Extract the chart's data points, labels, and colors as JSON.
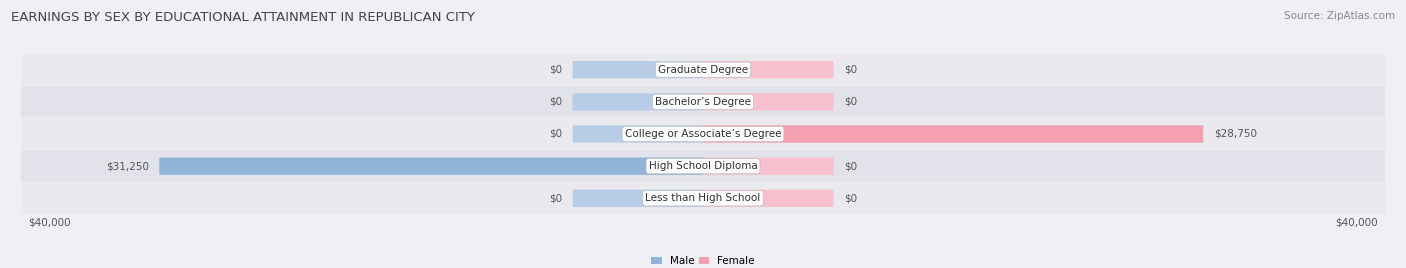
{
  "title": "EARNINGS BY SEX BY EDUCATIONAL ATTAINMENT IN REPUBLICAN CITY",
  "source": "Source: ZipAtlas.com",
  "categories": [
    "Less than High School",
    "High School Diploma",
    "College or Associate’s Degree",
    "Bachelor’s Degree",
    "Graduate Degree"
  ],
  "male_values": [
    0,
    31250,
    0,
    0,
    0
  ],
  "female_values": [
    0,
    0,
    28750,
    0,
    0
  ],
  "male_color": "#92b4d8",
  "female_color": "#f4a0b0",
  "male_color_light": "#b8cce8",
  "female_color_light": "#f8c0ce",
  "axis_max": 40000,
  "bar_height": 0.52,
  "small_bar_width": 7500,
  "row_colors": [
    "#eaeaee",
    "#e2e2ea"
  ],
  "label_fontsize": 7.5,
  "title_fontsize": 9.5,
  "source_fontsize": 7.5,
  "value_fontsize": 7.5,
  "category_fontsize": 7.5,
  "title_color": "#444444",
  "source_color": "#888888",
  "value_color": "#555555",
  "category_color": "#333333"
}
